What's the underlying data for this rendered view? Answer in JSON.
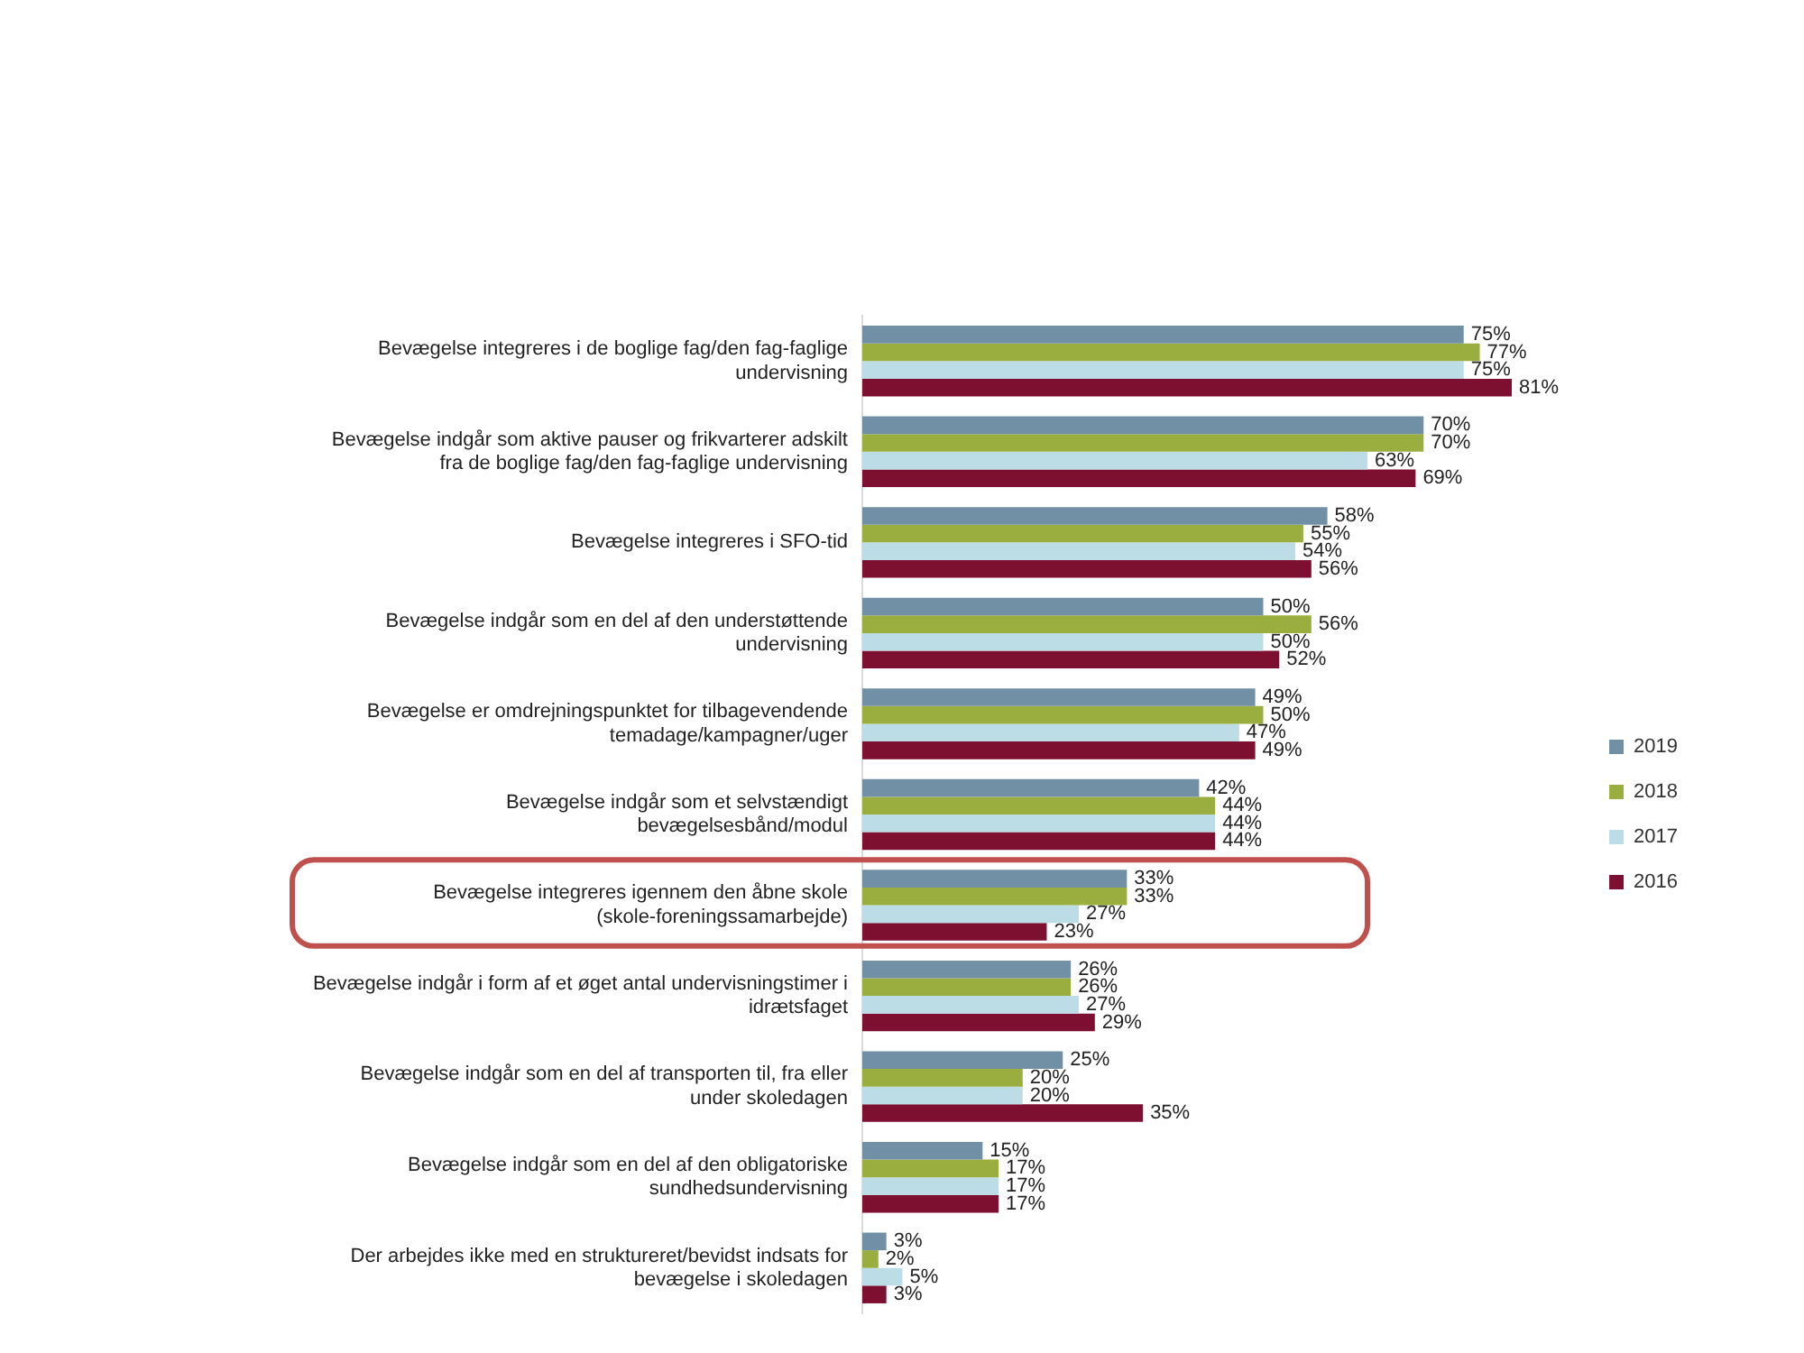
{
  "chart_data": {
    "type": "bar",
    "orientation": "horizontal",
    "legend": "right",
    "grid": false,
    "tick_labels": "y",
    "categories": [
      "Bevægelse integreres i de boglige fag/den fag-faglige undervisning",
      "Bevægelse indgår som aktive pauser og frikvarterer adskilt fra de boglige fag/den fag-faglige undervisning",
      "Bevægelse integreres i SFO-tid",
      "Bevægelse indgår som en del af den understøttende undervisning",
      "Bevægelse er omdrejningspunktet for tilbagevendende temadage/kampagner/uger",
      "Bevægelse indgår som et selvstændigt bevægelsesbånd/modul",
      "Bevægelse integreres igennem den åbne skole (skole-foreningssamarbejde)",
      "Bevægelse indgår i form af et øget antal undervisningstimer i idrætsfaget",
      "Bevægelse indgår som en del af transporten til, fra eller under skoledagen",
      "Bevægelse indgår som en del af den obligatoriske sundhedsundervisning",
      "Der arbejdes ikke med en struktureret/bevidst indsats for bevægelse i skoledagen"
    ],
    "series": [
      {
        "name": "2019",
        "color": "#7290a5",
        "values": [
          75,
          70,
          58,
          50,
          49,
          42,
          33,
          26,
          25,
          15,
          3
        ],
        "value_labels": [
          "75%",
          "70%",
          "58%",
          "50%",
          "49%",
          "42%",
          "33%",
          "26%",
          "25%",
          "15%",
          "3%"
        ]
      },
      {
        "name": "2018",
        "color": "#9aad3f",
        "values": [
          77,
          70,
          55,
          56,
          50,
          44,
          33,
          26,
          20,
          17,
          2
        ],
        "value_labels": [
          "77%",
          "70%",
          "55%",
          "56%",
          "50%",
          "44%",
          "33%",
          "26%",
          "20%",
          "17%",
          "2%"
        ]
      },
      {
        "name": "2017",
        "color": "#bcdde5",
        "values": [
          75,
          63,
          54,
          50,
          47,
          44,
          27,
          27,
          20,
          17,
          5
        ],
        "value_labels": [
          "75%",
          "63%",
          "54%",
          "50%",
          "47%",
          "44%",
          "27%",
          "27%",
          "20%",
          "17%",
          "5%"
        ]
      },
      {
        "name": "2016",
        "color": "#7d0f31",
        "values": [
          81,
          69,
          56,
          52,
          49,
          44,
          23,
          29,
          35,
          17,
          3
        ],
        "value_labels": [
          "81%",
          "69%",
          "56%",
          "52%",
          "49%",
          "44%",
          "23%",
          "29%",
          "35%",
          "17%",
          "3%"
        ]
      }
    ]
  }
}
